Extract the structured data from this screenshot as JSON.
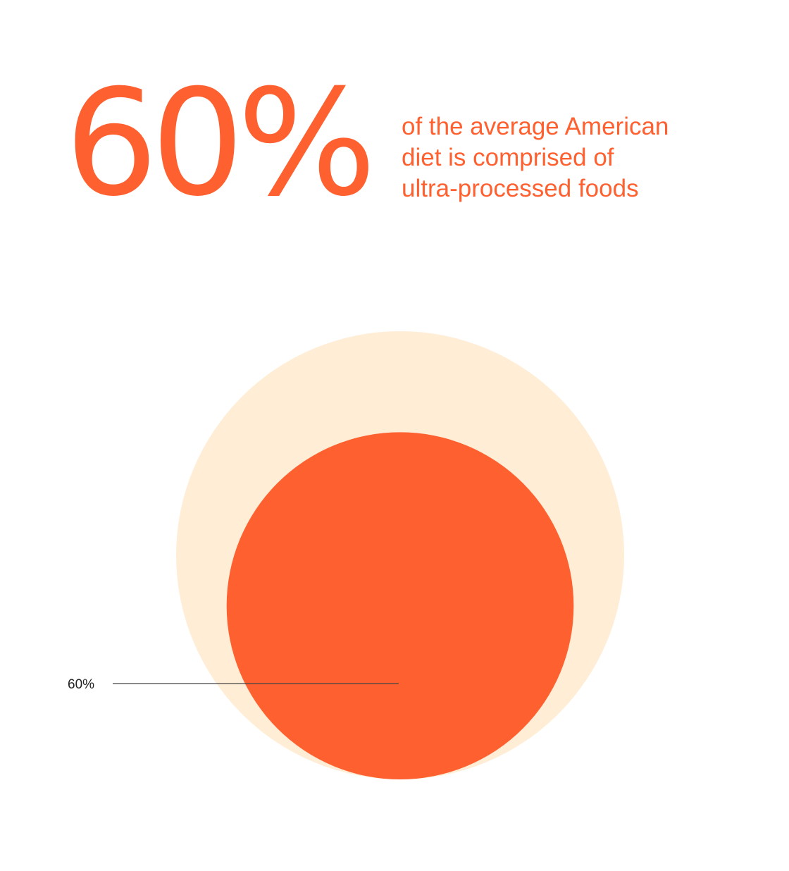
{
  "headline": {
    "stat": "60%",
    "caption_lines": [
      "of the average American",
      "diet is comprised of",
      "ultra-processed foods"
    ]
  },
  "colors": {
    "accent": "#FF6030",
    "whole": "#FFEDD6",
    "leader_line": "#444444",
    "label": "#222222"
  },
  "chart_data": {
    "type": "nested-circle",
    "whole": 100,
    "parts": [
      {
        "value": 60,
        "label": "60%"
      }
    ]
  }
}
